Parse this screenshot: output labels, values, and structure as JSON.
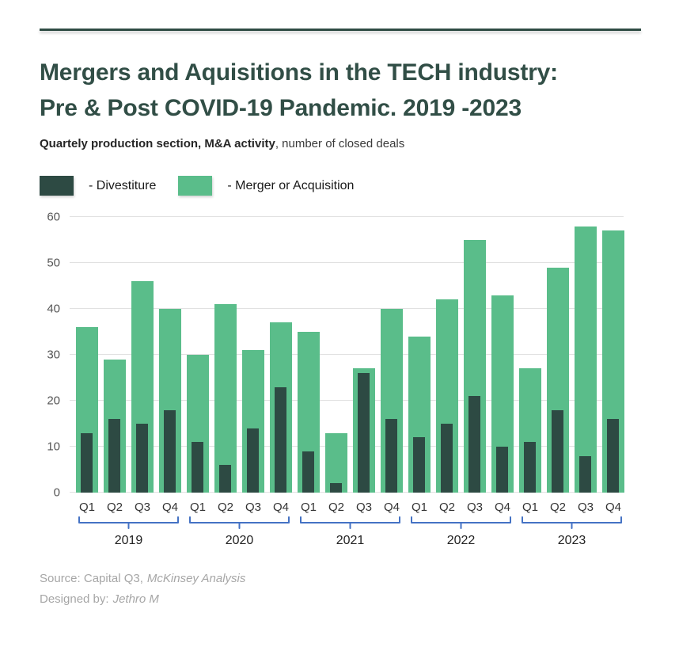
{
  "page": {
    "title_line1": "Mergers and Aquisitions in the TECH industry:",
    "title_line2": "Pre & Post COVID-19 Pandemic. 2019 -2023",
    "subtitle_bold": "Quartely production section, M&A activity",
    "subtitle_rest": ", number of closed deals"
  },
  "legend": {
    "items": [
      {
        "label": "- Divestiture",
        "color": "#2D4A43"
      },
      {
        "label": "- Merger or Acquisition",
        "color": "#5ABD8A"
      }
    ]
  },
  "footer": {
    "source_prefix": "Source: Capital Q3,",
    "source_italic": "McKinsey Analysis",
    "designed_prefix": "Designed by:",
    "designed_italic": "Jethro M"
  },
  "colors": {
    "divestiture": "#2D4A43",
    "merger_or_acquisition": "#5ABD8A",
    "bracket_blue": "#4472C4",
    "title_text": "#314E46",
    "top_rule": "#2E4B43",
    "gridline": "#E1E1E1",
    "footer_gray": "#A6A6A6"
  },
  "chart_data": {
    "type": "bar",
    "title": "Mergers and Aquisitions in the TECH industry: Pre & Post COVID-19 Pandemic. 2019 -2023",
    "xlabel": "",
    "ylabel": "number of closed deals",
    "ylim": [
      0,
      60
    ],
    "yticks": [
      0,
      10,
      20,
      30,
      40,
      50,
      60
    ],
    "grid": true,
    "legend_position": "top-left",
    "bar_style": "divestiture bar drawn overlaid inside wider merger bar",
    "quarter_labels": [
      "Q1",
      "Q2",
      "Q3",
      "Q4"
    ],
    "groups": [
      {
        "year": "2019",
        "merger_or_acquisition": [
          36,
          29,
          46,
          40
        ],
        "divestiture": [
          13,
          16,
          15,
          18
        ]
      },
      {
        "year": "2020",
        "merger_or_acquisition": [
          30,
          41,
          31,
          37
        ],
        "divestiture": [
          11,
          6,
          14,
          23
        ]
      },
      {
        "year": "2021",
        "merger_or_acquisition": [
          35,
          13,
          27,
          40
        ],
        "divestiture": [
          9,
          2,
          26,
          16
        ]
      },
      {
        "year": "2022",
        "merger_or_acquisition": [
          34,
          42,
          55,
          43
        ],
        "divestiture": [
          12,
          15,
          21,
          10
        ]
      },
      {
        "year": "2023",
        "merger_or_acquisition": [
          27,
          49,
          58,
          57
        ],
        "divestiture": [
          11,
          18,
          8,
          16
        ]
      }
    ]
  }
}
